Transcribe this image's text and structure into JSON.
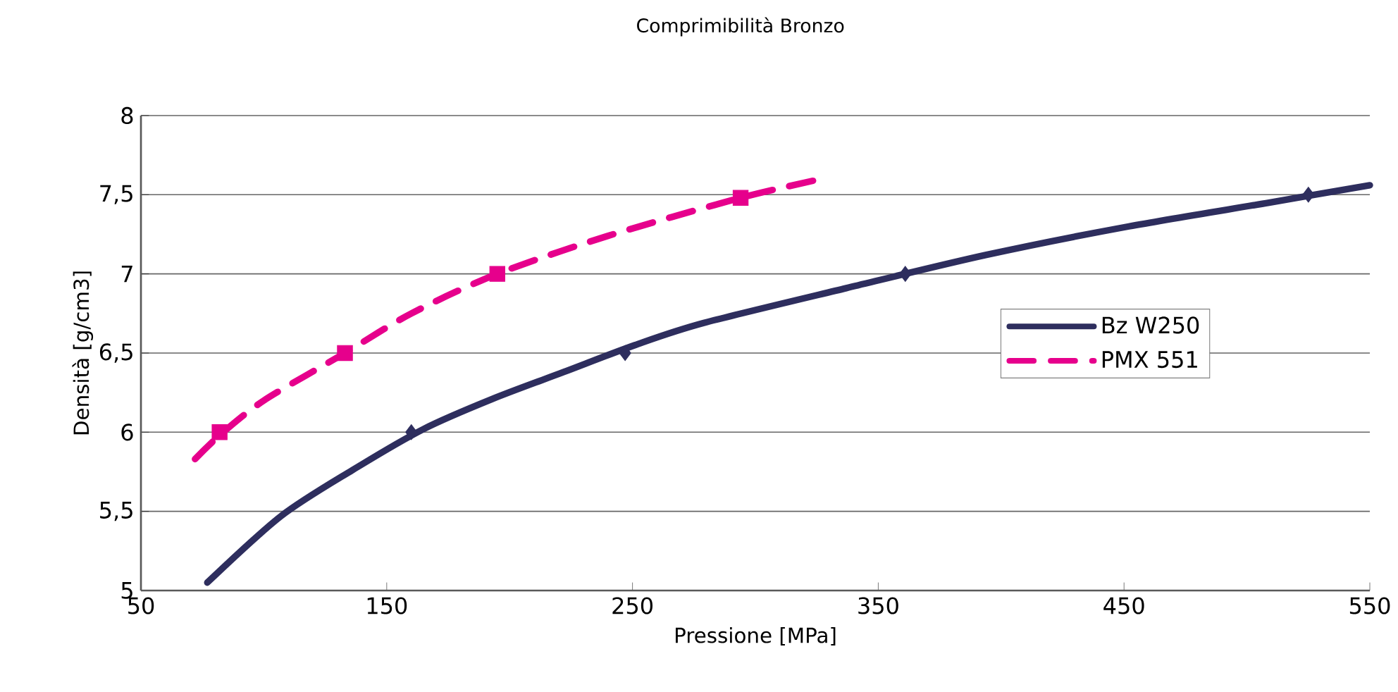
{
  "chart_data": {
    "type": "line",
    "title": "Comprimibilità Bronzo",
    "xlabel": "Pressione [MPa]",
    "ylabel": "Densità [g/cm3]",
    "xlim": [
      50,
      550
    ],
    "xticks": [
      50,
      150,
      250,
      350,
      450,
      550
    ],
    "ylim": [
      5,
      8
    ],
    "yticks": [
      {
        "value": 5,
        "label": "5"
      },
      {
        "value": 5.5,
        "label": "5,5"
      },
      {
        "value": 6,
        "label": "6"
      },
      {
        "value": 6.5,
        "label": "6,5"
      },
      {
        "value": 7,
        "label": "7"
      },
      {
        "value": 7.5,
        "label": "7,5"
      },
      {
        "value": 8,
        "label": "8"
      }
    ],
    "grid": "y",
    "legend": "right",
    "series": [
      {
        "type": "scatter",
        "marker": "diamond",
        "color": "#2e2e5e",
        "x": [
          160,
          247,
          361,
          525
        ],
        "values": [
          6.0,
          6.5,
          7.0,
          7.5
        ]
      },
      {
        "type": "scatter",
        "marker": "square",
        "color": "#e6008c",
        "x": [
          82,
          133,
          195,
          294
        ],
        "values": [
          6.0,
          6.5,
          7.0,
          7.48
        ]
      },
      {
        "name": "Bz W250",
        "line_style": "solid",
        "color": "#2e2e5e",
        "x": [
          77,
          107,
          136,
          165,
          193,
          222,
          251,
          279,
          337,
          394,
          452,
          509,
          550
        ],
        "values": [
          5.05,
          5.47,
          5.76,
          6.02,
          6.21,
          6.38,
          6.55,
          6.69,
          6.91,
          7.12,
          7.3,
          7.45,
          7.56
        ]
      },
      {
        "name": "PMX 551",
        "line_style": "dashed",
        "color": "#e6008c",
        "x": [
          72,
          82,
          100,
          133,
          160,
          195,
          240,
          294,
          327
        ],
        "values": [
          5.83,
          5.98,
          6.2,
          6.5,
          6.75,
          7.0,
          7.24,
          7.48,
          7.6
        ]
      }
    ]
  }
}
